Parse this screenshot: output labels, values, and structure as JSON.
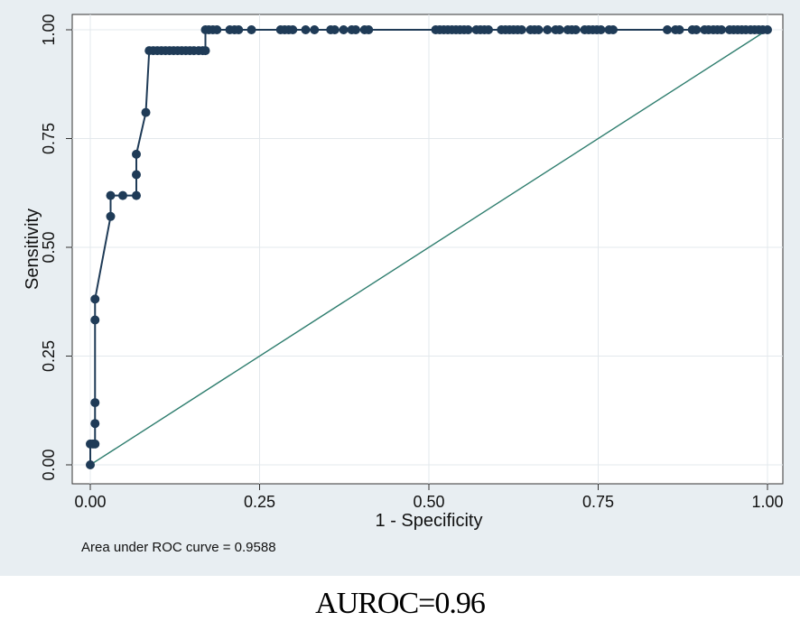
{
  "chart_data": {
    "type": "line",
    "xlabel": "1 - Specificity",
    "ylabel": "Sensitivity",
    "note": "Area under ROC curve = 0.9588",
    "xlim": [
      0,
      1
    ],
    "ylim": [
      0,
      1
    ],
    "x_ticks": [
      "0.00",
      "0.25",
      "0.50",
      "0.75",
      "1.00"
    ],
    "y_ticks": [
      "0.00",
      "0.25",
      "0.50",
      "0.75",
      "1.00"
    ],
    "grid": true,
    "colors": {
      "curve": "#1f3b57",
      "reference": "#2e7d6e",
      "background": "#e8eef2",
      "plot_area": "#ffffff"
    },
    "series": [
      {
        "values": [
          [
            0.0,
            0.0
          ],
          [
            0.0,
            0.048
          ],
          [
            0.004,
            0.048
          ],
          [
            0.007,
            0.048
          ],
          [
            0.007,
            0.095
          ],
          [
            0.007,
            0.143
          ],
          [
            0.007,
            0.333
          ],
          [
            0.007,
            0.381
          ],
          [
            0.03,
            0.571
          ],
          [
            0.03,
            0.619
          ],
          [
            0.048,
            0.619
          ],
          [
            0.068,
            0.619
          ],
          [
            0.068,
            0.667
          ],
          [
            0.068,
            0.714
          ],
          [
            0.082,
            0.81
          ],
          [
            0.087,
            0.952
          ],
          [
            0.093,
            0.952
          ],
          [
            0.099,
            0.952
          ],
          [
            0.105,
            0.952
          ],
          [
            0.111,
            0.952
          ],
          [
            0.117,
            0.952
          ],
          [
            0.123,
            0.952
          ],
          [
            0.129,
            0.952
          ],
          [
            0.135,
            0.952
          ],
          [
            0.141,
            0.952
          ],
          [
            0.147,
            0.952
          ],
          [
            0.153,
            0.952
          ],
          [
            0.16,
            0.952
          ],
          [
            0.166,
            0.952
          ],
          [
            0.17,
            0.952
          ],
          [
            0.17,
            1.0
          ],
          [
            0.175,
            1.0
          ],
          [
            0.181,
            1.0
          ],
          [
            0.187,
            1.0
          ],
          [
            0.206,
            1.0
          ],
          [
            0.213,
            1.0
          ],
          [
            0.219,
            1.0
          ],
          [
            0.238,
            1.0
          ],
          [
            0.281,
            1.0
          ],
          [
            0.287,
            1.0
          ],
          [
            0.293,
            1.0
          ],
          [
            0.299,
            1.0
          ],
          [
            0.318,
            1.0
          ],
          [
            0.331,
            1.0
          ],
          [
            0.355,
            1.0
          ],
          [
            0.361,
            1.0
          ],
          [
            0.374,
            1.0
          ],
          [
            0.386,
            1.0
          ],
          [
            0.392,
            1.0
          ],
          [
            0.405,
            1.0
          ],
          [
            0.411,
            1.0
          ],
          [
            0.51,
            1.0
          ],
          [
            0.516,
            1.0
          ],
          [
            0.522,
            1.0
          ],
          [
            0.528,
            1.0
          ],
          [
            0.534,
            1.0
          ],
          [
            0.54,
            1.0
          ],
          [
            0.546,
            1.0
          ],
          [
            0.552,
            1.0
          ],
          [
            0.558,
            1.0
          ],
          [
            0.57,
            1.0
          ],
          [
            0.576,
            1.0
          ],
          [
            0.582,
            1.0
          ],
          [
            0.588,
            1.0
          ],
          [
            0.607,
            1.0
          ],
          [
            0.613,
            1.0
          ],
          [
            0.619,
            1.0
          ],
          [
            0.625,
            1.0
          ],
          [
            0.631,
            1.0
          ],
          [
            0.637,
            1.0
          ],
          [
            0.65,
            1.0
          ],
          [
            0.656,
            1.0
          ],
          [
            0.662,
            1.0
          ],
          [
            0.675,
            1.0
          ],
          [
            0.687,
            1.0
          ],
          [
            0.693,
            1.0
          ],
          [
            0.705,
            1.0
          ],
          [
            0.711,
            1.0
          ],
          [
            0.717,
            1.0
          ],
          [
            0.73,
            1.0
          ],
          [
            0.736,
            1.0
          ],
          [
            0.742,
            1.0
          ],
          [
            0.748,
            1.0
          ],
          [
            0.754,
            1.0
          ],
          [
            0.766,
            1.0
          ],
          [
            0.772,
            1.0
          ],
          [
            0.852,
            1.0
          ],
          [
            0.864,
            1.0
          ],
          [
            0.87,
            1.0
          ],
          [
            0.889,
            1.0
          ],
          [
            0.895,
            1.0
          ],
          [
            0.907,
            1.0
          ],
          [
            0.913,
            1.0
          ],
          [
            0.92,
            1.0
          ],
          [
            0.926,
            1.0
          ],
          [
            0.932,
            1.0
          ],
          [
            0.944,
            1.0
          ],
          [
            0.95,
            1.0
          ],
          [
            0.956,
            1.0
          ],
          [
            0.962,
            1.0
          ],
          [
            0.968,
            1.0
          ],
          [
            0.975,
            1.0
          ],
          [
            0.981,
            1.0
          ],
          [
            0.987,
            1.0
          ],
          [
            0.993,
            1.0
          ],
          [
            1.0,
            1.0
          ]
        ]
      },
      {
        "values": [
          [
            0,
            0
          ],
          [
            1,
            1
          ]
        ]
      }
    ]
  },
  "caption": "AUROC=0.96"
}
